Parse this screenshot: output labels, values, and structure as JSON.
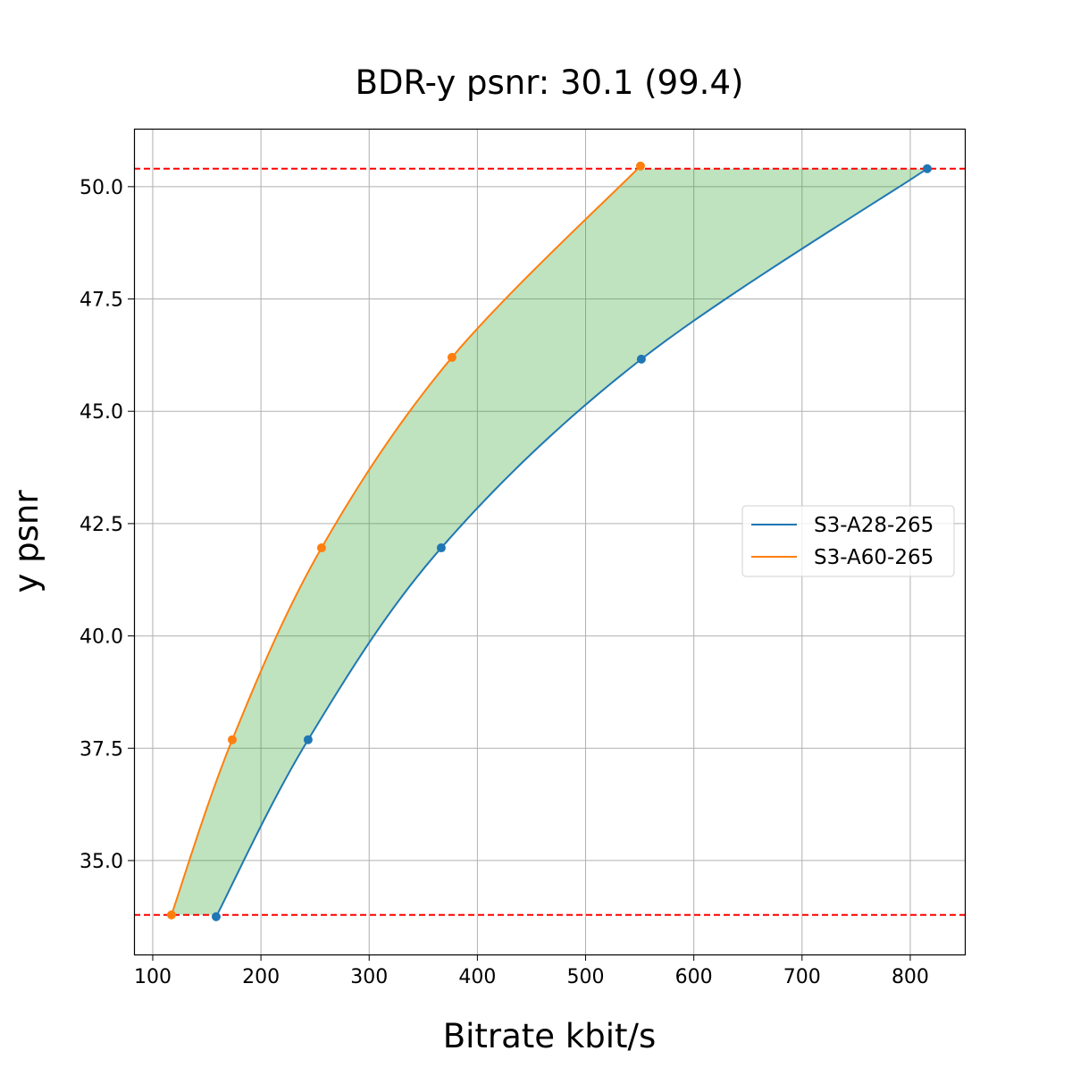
{
  "chart_data": {
    "type": "line",
    "title": "BDR-y psnr: 30.1 (99.4)",
    "xlabel": "Bitrate kbit/s",
    "ylabel": "y psnr",
    "xlim": [
      82.7,
      850.4
    ],
    "ylim": [
      32.91,
      51.29
    ],
    "xticks": [
      100,
      200,
      300,
      400,
      500,
      600,
      700,
      800
    ],
    "xtick_labels": [
      "100",
      "200",
      "300",
      "400",
      "500",
      "600",
      "700",
      "800"
    ],
    "yticks": [
      35.0,
      37.5,
      40.0,
      42.5,
      45.0,
      47.5,
      50.0
    ],
    "ytick_labels": [
      "35.0",
      "37.5",
      "40.0",
      "42.5",
      "45.0",
      "47.5",
      "50.0"
    ],
    "grid": true,
    "legend_placement": "center-right",
    "series": [
      {
        "name": "S3-A28-265",
        "color": "#1f77b4",
        "x": [
          158.6,
          243.6,
          366.6,
          551.5,
          815.7
        ],
        "y": [
          33.75,
          37.69,
          41.96,
          46.16,
          50.4
        ]
      },
      {
        "name": "S3-A60-265",
        "color": "#ff7f0e",
        "x": [
          117.3,
          173.5,
          256.0,
          376.5,
          550.7
        ],
        "y": [
          33.79,
          37.69,
          41.96,
          46.2,
          50.46
        ]
      }
    ],
    "reference_lines": {
      "y": [
        50.4,
        33.79
      ],
      "color": "#ff0000",
      "style": "dashed"
    },
    "fill_between": {
      "color": "#2ca02c",
      "alpha": 0.3
    }
  }
}
